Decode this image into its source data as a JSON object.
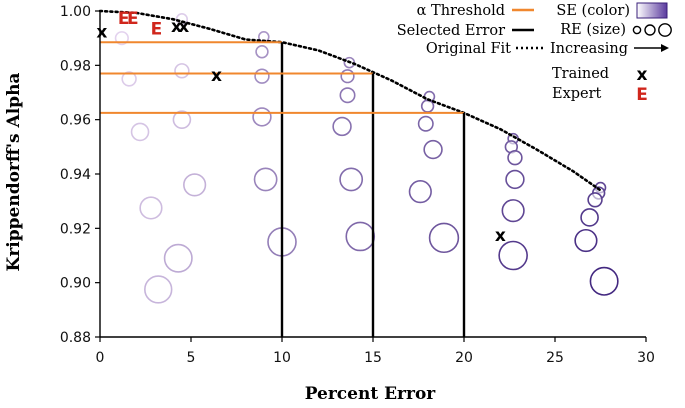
{
  "chart_data": {
    "type": "scatter",
    "xlabel": "Percent Error",
    "ylabel": "Krippendorff's Alpha",
    "xlim": [
      0,
      30
    ],
    "ylim": [
      0.88,
      1.0
    ],
    "xticks": [
      "0",
      "5",
      "10",
      "15",
      "20",
      "25",
      "30"
    ],
    "yticks": [
      "0.88",
      "0.90",
      "0.92",
      "0.94",
      "0.96",
      "0.98",
      "1.00"
    ],
    "grid": false,
    "legend_position": "top-right",
    "legend": {
      "threshold": "α Threshold",
      "selected_error": "Selected Error",
      "original_fit": "Original Fit",
      "se_color": "SE (color)",
      "re_size": "RE (size)",
      "increasing": "Increasing",
      "trained": "Trained",
      "expert": "Expert"
    },
    "colors": {
      "threshold": "#f0872e",
      "selected_error": "#000000",
      "original_fit": "#000000",
      "se_light": "#e6d6f0",
      "se_dark": "#3a1f7a",
      "expert": "#d0261c"
    },
    "original_fit": [
      [
        0,
        1.0
      ],
      [
        2,
        0.9993
      ],
      [
        4,
        0.997
      ],
      [
        6,
        0.9935
      ],
      [
        8,
        0.9895
      ],
      [
        10,
        0.9885
      ],
      [
        12,
        0.9855
      ],
      [
        14,
        0.9805
      ],
      [
        16,
        0.9745
      ],
      [
        18,
        0.9675
      ],
      [
        20,
        0.9625
      ],
      [
        22,
        0.9565
      ],
      [
        24,
        0.949
      ],
      [
        26,
        0.941
      ],
      [
        27.5,
        0.934
      ]
    ],
    "thresholds": [
      {
        "alpha": 0.9885,
        "error": 10
      },
      {
        "alpha": 0.977,
        "error": 15
      },
      {
        "alpha": 0.9625,
        "error": 20
      }
    ],
    "bubbles": [
      {
        "x": 1.2,
        "y": 0.99,
        "se": 0.02,
        "re": 0.25
      },
      {
        "x": 1.6,
        "y": 0.975,
        "se": 0.06,
        "re": 0.3
      },
      {
        "x": 2.2,
        "y": 0.9555,
        "se": 0.1,
        "re": 0.42
      },
      {
        "x": 2.8,
        "y": 0.9275,
        "se": 0.14,
        "re": 0.6
      },
      {
        "x": 3.2,
        "y": 0.8975,
        "se": 0.18,
        "re": 0.8
      },
      {
        "x": 4.5,
        "y": 0.997,
        "se": 0.05,
        "re": 0.18
      },
      {
        "x": 4.5,
        "y": 0.978,
        "se": 0.1,
        "re": 0.3
      },
      {
        "x": 4.5,
        "y": 0.96,
        "se": 0.14,
        "re": 0.42
      },
      {
        "x": 5.2,
        "y": 0.936,
        "se": 0.2,
        "re": 0.6
      },
      {
        "x": 4.3,
        "y": 0.909,
        "se": 0.24,
        "re": 0.82
      },
      {
        "x": 9.0,
        "y": 0.9905,
        "se": 0.35,
        "re": 0.15
      },
      {
        "x": 8.9,
        "y": 0.985,
        "se": 0.37,
        "re": 0.22
      },
      {
        "x": 8.9,
        "y": 0.976,
        "se": 0.4,
        "re": 0.3
      },
      {
        "x": 8.9,
        "y": 0.961,
        "se": 0.42,
        "re": 0.45
      },
      {
        "x": 9.1,
        "y": 0.938,
        "se": 0.45,
        "re": 0.62
      },
      {
        "x": 10.0,
        "y": 0.915,
        "se": 0.48,
        "re": 0.85
      },
      {
        "x": 13.7,
        "y": 0.981,
        "se": 0.45,
        "re": 0.15
      },
      {
        "x": 13.6,
        "y": 0.976,
        "se": 0.5,
        "re": 0.25
      },
      {
        "x": 13.6,
        "y": 0.969,
        "se": 0.52,
        "re": 0.32
      },
      {
        "x": 13.3,
        "y": 0.9575,
        "se": 0.55,
        "re": 0.45
      },
      {
        "x": 13.8,
        "y": 0.938,
        "se": 0.58,
        "re": 0.62
      },
      {
        "x": 14.3,
        "y": 0.917,
        "se": 0.6,
        "re": 0.85
      },
      {
        "x": 18.1,
        "y": 0.9685,
        "se": 0.58,
        "re": 0.15
      },
      {
        "x": 18.0,
        "y": 0.965,
        "se": 0.6,
        "re": 0.22
      },
      {
        "x": 17.9,
        "y": 0.9585,
        "se": 0.62,
        "re": 0.32
      },
      {
        "x": 18.3,
        "y": 0.949,
        "se": 0.64,
        "re": 0.45
      },
      {
        "x": 17.6,
        "y": 0.9335,
        "se": 0.66,
        "re": 0.6
      },
      {
        "x": 18.9,
        "y": 0.9165,
        "se": 0.7,
        "re": 0.88
      },
      {
        "x": 22.7,
        "y": 0.953,
        "se": 0.66,
        "re": 0.15
      },
      {
        "x": 22.6,
        "y": 0.95,
        "se": 0.68,
        "re": 0.22
      },
      {
        "x": 22.8,
        "y": 0.946,
        "se": 0.7,
        "re": 0.3
      },
      {
        "x": 22.8,
        "y": 0.938,
        "se": 0.74,
        "re": 0.45
      },
      {
        "x": 22.7,
        "y": 0.9265,
        "se": 0.78,
        "re": 0.6
      },
      {
        "x": 22.7,
        "y": 0.91,
        "se": 0.85,
        "re": 0.85
      },
      {
        "x": 27.5,
        "y": 0.935,
        "se": 0.78,
        "re": 0.15
      },
      {
        "x": 27.4,
        "y": 0.933,
        "se": 0.8,
        "re": 0.22
      },
      {
        "x": 27.2,
        "y": 0.9305,
        "se": 0.82,
        "re": 0.3
      },
      {
        "x": 26.9,
        "y": 0.924,
        "se": 0.86,
        "re": 0.42
      },
      {
        "x": 26.7,
        "y": 0.9155,
        "se": 0.9,
        "re": 0.6
      },
      {
        "x": 27.7,
        "y": 0.9005,
        "se": 0.95,
        "re": 0.82
      }
    ],
    "trained": [
      {
        "x": 0.1,
        "y": 0.9925
      },
      {
        "x": 4.2,
        "y": 0.9945
      },
      {
        "x": 4.6,
        "y": 0.9945
      },
      {
        "x": 6.4,
        "y": 0.9765
      },
      {
        "x": 22.0,
        "y": 0.9175
      }
    ],
    "expert": [
      {
        "x": 1.3,
        "y": 0.9975
      },
      {
        "x": 1.8,
        "y": 0.9975
      },
      {
        "x": 3.1,
        "y": 0.9935
      }
    ]
  }
}
